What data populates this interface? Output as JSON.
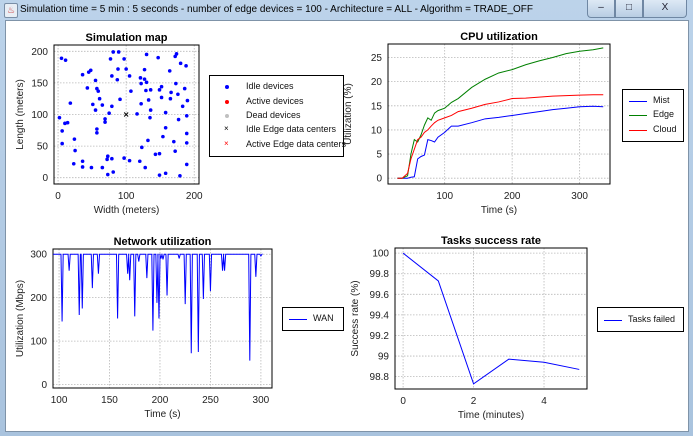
{
  "window": {
    "title": "Simulation time = 5 min : 5 seconds  -  number of edge devices = 100 -  Architecture = ALL -  Algorithm = TRADE_OFF",
    "icon": "java-cup-icon",
    "controls": {
      "minimize": "–",
      "maximize": "□",
      "close": "X"
    }
  },
  "chart_data": [
    {
      "id": "map",
      "type": "scatter",
      "title": "Simulation map",
      "xlabel": "Width (meters)",
      "ylabel": "Length (meters)",
      "xlim": [
        -6,
        207
      ],
      "ylim": [
        -10,
        210
      ],
      "xticks": [
        "0",
        "100",
        "200"
      ],
      "xtick_values": [
        0,
        100,
        200
      ],
      "yticks": [
        "0",
        "50",
        "100",
        "150",
        "200"
      ],
      "ytick_values": [
        0,
        50,
        100,
        150,
        200
      ],
      "grid": true,
      "legend_placement": "right",
      "legend": [
        {
          "label": "Idle devices",
          "marker": "dot",
          "color": "#0000ff"
        },
        {
          "label": "Active devices",
          "marker": "dot",
          "color": "#ff0000"
        },
        {
          "label": "Dead devices",
          "marker": "dot",
          "color": "#c0c0c0"
        },
        {
          "label": "Idle Edge data centers",
          "marker": "x",
          "color": "#000000"
        },
        {
          "label": "Active Edge data centers",
          "marker": "x",
          "color": "#ff0000"
        }
      ],
      "series": [
        {
          "name": "Idle devices",
          "color": "#0000ff",
          "points": [
            [
              5,
              189
            ],
            [
              11,
              186
            ],
            [
              2,
              95
            ],
            [
              6,
              74
            ],
            [
              6,
              54
            ],
            [
              10,
              86
            ],
            [
              14,
              87
            ],
            [
              18,
              118
            ],
            [
              24,
              61
            ],
            [
              25,
              43
            ],
            [
              23,
              22
            ],
            [
              36,
              163
            ],
            [
              45,
              167
            ],
            [
              48,
              170
            ],
            [
              55,
              154
            ],
            [
              43,
              142
            ],
            [
              57,
              141
            ],
            [
              59,
              137
            ],
            [
              61,
              125
            ],
            [
              51,
              116
            ],
            [
              55,
              107
            ],
            [
              65,
              115
            ],
            [
              69,
              93
            ],
            [
              69,
              88
            ],
            [
              57,
              77
            ],
            [
              57,
              71
            ],
            [
              36,
              26
            ],
            [
              36,
              17
            ],
            [
              49,
              16
            ],
            [
              65,
              16
            ],
            [
              73,
              34
            ],
            [
              72,
              29
            ],
            [
              79,
              30
            ],
            [
              73,
              5
            ],
            [
              81,
              9
            ],
            [
              81,
              199
            ],
            [
              89,
              199
            ],
            [
              77,
              188
            ],
            [
              79,
              161
            ],
            [
              88,
              172
            ],
            [
              87,
              155
            ],
            [
              79,
              113
            ],
            [
              75,
              102
            ],
            [
              91,
              124
            ],
            [
              97,
              188
            ],
            [
              100,
              172
            ],
            [
              105,
              161
            ],
            [
              107,
              137
            ],
            [
              97,
              31
            ],
            [
              105,
              27
            ],
            [
              116,
              101
            ],
            [
              120,
              26
            ],
            [
              123,
              48
            ],
            [
              122,
              117
            ],
            [
              121,
              158
            ],
            [
              122,
              149
            ],
            [
              127,
              171
            ],
            [
              127,
              156
            ],
            [
              130,
              195
            ],
            [
              130,
              151
            ],
            [
              129,
              138
            ],
            [
              136,
              139
            ],
            [
              133,
              123
            ],
            [
              136,
              107
            ],
            [
              135,
              95
            ],
            [
              132,
              59
            ],
            [
              128,
              16
            ],
            [
              143,
              37
            ],
            [
              149,
              38
            ],
            [
              149,
              4
            ],
            [
              158,
              7
            ],
            [
              147,
              190
            ],
            [
              149,
              139
            ],
            [
              152,
              144
            ],
            [
              152,
              127
            ],
            [
              158,
              103
            ],
            [
              158,
              79
            ],
            [
              154,
              65
            ],
            [
              165,
              125
            ],
            [
              166,
              135
            ],
            [
              164,
              169
            ],
            [
              172,
              192
            ],
            [
              174,
              196
            ],
            [
              173,
              149
            ],
            [
              176,
              132
            ],
            [
              170,
              57
            ],
            [
              172,
              42
            ],
            [
              177,
              92
            ],
            [
              179,
              3
            ],
            [
              180,
              181
            ],
            [
              183,
              113
            ],
            [
              186,
              141
            ],
            [
              188,
              177
            ],
            [
              190,
              122
            ],
            [
              189,
              98
            ],
            [
              189,
              70
            ],
            [
              189,
              55
            ],
            [
              189,
              21
            ]
          ]
        },
        {
          "name": "Idle Edge data centers",
          "color": "#000000",
          "marker": "x",
          "points": [
            [
              100,
              100
            ]
          ]
        }
      ]
    },
    {
      "id": "cpu",
      "type": "line",
      "title": "CPU utilization",
      "xlabel": "Time (s)",
      "ylabel": "Utilization (%)",
      "xlim": [
        16,
        345
      ],
      "ylim": [
        -1.2,
        27.8
      ],
      "xticks": [
        "100",
        "200",
        "300"
      ],
      "xtick_values": [
        100,
        200,
        300
      ],
      "yticks": [
        "0",
        "5",
        "10",
        "15",
        "20",
        "25"
      ],
      "ytick_values": [
        0,
        5,
        10,
        15,
        20,
        25
      ],
      "grid": true,
      "legend_placement": "right",
      "x": [
        30,
        37,
        45,
        50,
        55,
        60,
        65,
        70,
        75,
        80,
        85,
        90,
        100,
        110,
        120,
        140,
        160,
        180,
        200,
        220,
        240,
        260,
        280,
        300,
        320,
        335
      ],
      "series": [
        {
          "name": "Mist",
          "color": "#0000ff",
          "values": [
            0,
            0,
            0,
            0.2,
            0.3,
            4,
            4.5,
            4.8,
            8,
            7.8,
            7.5,
            8.5,
            9.5,
            10.8,
            10.8,
            11.5,
            12.3,
            12.6,
            13,
            13.4,
            13.8,
            14.2,
            14.5,
            14.8,
            14.9,
            14.8
          ]
        },
        {
          "name": "Edge",
          "color": "#008000",
          "values": [
            0,
            0,
            0.5,
            5,
            8,
            7.5,
            9,
            11,
            12.5,
            12,
            13.5,
            14,
            14.5,
            15.7,
            16.5,
            18.8,
            20.5,
            21.8,
            22.5,
            23.5,
            24.3,
            25,
            25.8,
            26.3,
            26.6,
            27
          ]
        },
        {
          "name": "Cloud",
          "color": "#ff0000",
          "values": [
            0,
            0,
            1,
            4,
            6,
            8,
            8.5,
            9.5,
            10,
            10.8,
            11.5,
            12,
            12.5,
            13,
            13.8,
            14.5,
            15.3,
            15.8,
            16.5,
            16.6,
            16.8,
            17,
            17.1,
            17.2,
            17.3,
            17.3
          ]
        }
      ]
    },
    {
      "id": "network",
      "type": "line",
      "title": "Network utilization",
      "xlabel": "Time (s)",
      "ylabel": "Utilization (Mbps)",
      "xlim": [
        94,
        311
      ],
      "ylim": [
        -8,
        312
      ],
      "xticks": [
        "100",
        "150",
        "200",
        "250",
        "300"
      ],
      "xtick_values": [
        100,
        150,
        200,
        250,
        300
      ],
      "yticks": [
        "0",
        "100",
        "200",
        "300"
      ],
      "ytick_values": [
        0,
        100,
        200,
        300
      ],
      "grid": true,
      "legend_placement": "right",
      "baseline": 300,
      "x_start": 94,
      "x_end": 301,
      "series": [
        {
          "name": "WAN",
          "color": "#0000ff",
          "dips": [
            [
              103,
              145
            ],
            [
              110,
              262
            ],
            [
              120,
              160
            ],
            [
              123,
              175
            ],
            [
              133,
              222
            ],
            [
              139,
              255
            ],
            [
              158,
              152
            ],
            [
              168,
              255
            ],
            [
              170,
              240
            ],
            [
              175,
              157
            ],
            [
              179,
              283
            ],
            [
              187,
              245
            ],
            [
              193,
              124
            ],
            [
              197,
              188
            ],
            [
              199,
              152
            ],
            [
              201,
              290
            ],
            [
              203,
              288
            ],
            [
              207,
              205
            ],
            [
              219,
              290
            ],
            [
              225,
              185
            ],
            [
              231,
              72
            ],
            [
              238,
              75
            ],
            [
              243,
              197
            ],
            [
              250,
              215
            ],
            [
              262,
              262
            ],
            [
              264,
              262
            ],
            [
              289,
              55
            ],
            [
              295,
              248
            ],
            [
              300,
              296
            ]
          ]
        }
      ]
    },
    {
      "id": "tasks",
      "type": "line",
      "title": "Tasks success rate",
      "xlabel": "Time (minutes)",
      "ylabel": "Success rate (%)",
      "xlim": [
        -0.23,
        5.22
      ],
      "ylim": [
        98.68,
        100.05
      ],
      "xticks": [
        "0",
        "2",
        "4"
      ],
      "xtick_values": [
        0,
        2,
        4
      ],
      "yticks": [
        "98.8",
        "99",
        "99.2",
        "99.4",
        "99.6",
        "99.8",
        "100"
      ],
      "ytick_values": [
        98.8,
        99,
        99.2,
        99.4,
        99.6,
        99.8,
        100
      ],
      "grid": true,
      "legend_placement": "right",
      "x": [
        0,
        1,
        2,
        3,
        4,
        5
      ],
      "series": [
        {
          "name": "Tasks failed",
          "color": "#0000ff",
          "values": [
            100,
            99.73,
            98.73,
            98.97,
            98.94,
            98.87
          ]
        }
      ]
    }
  ]
}
